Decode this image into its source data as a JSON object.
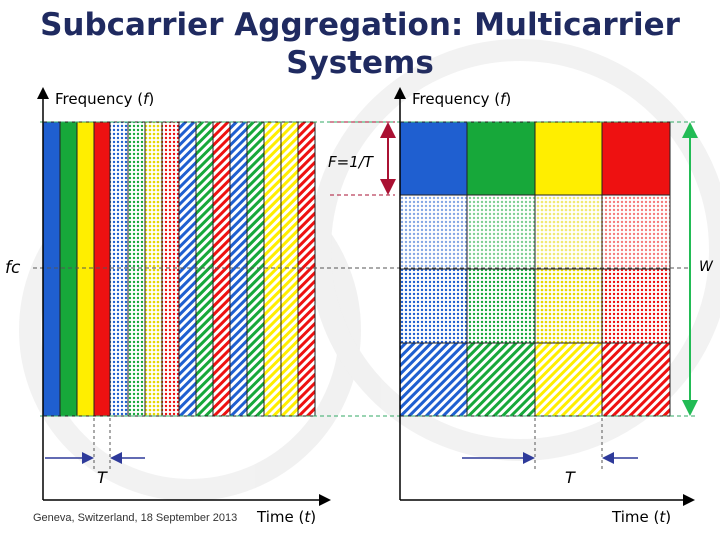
{
  "slide": {
    "title_line1": "Subcarrier Aggregation: Multicarrier",
    "title_line2": "Systems",
    "footer": "Geneva, Switzerland, 18 September 2013"
  },
  "left_plot": {
    "y_axis_label_text": "Frequency (",
    "y_axis_label_var": "f",
    "y_axis_label_close": ")",
    "x_axis_label_text": "Time (",
    "x_axis_label_var": "t",
    "x_axis_label_close": ")",
    "center_frequency_label": "fc",
    "symbol_period_label": "T"
  },
  "right_plot": {
    "y_axis_label_text": "Frequency (",
    "y_axis_label_var": "f",
    "y_axis_label_close": ")",
    "x_axis_label_text": "Time (",
    "x_axis_label_var": "t",
    "x_axis_label_close": ")",
    "spacing_label": "F=1/T",
    "bandwidth_label": "W",
    "symbol_period_label": "T"
  },
  "colors": {
    "blue": "#1f5fd0",
    "green": "#17a83a",
    "yellow": "#ffee00",
    "red": "#ee1111",
    "title": "#1f2a60",
    "guide_green": "#33aa66",
    "arrow_dark_red": "#aa1133",
    "arrow_green": "#22bb55",
    "period_arrow": "#2e3a9a"
  },
  "fill_styles": [
    "solid",
    "dotted",
    "hatched"
  ]
}
